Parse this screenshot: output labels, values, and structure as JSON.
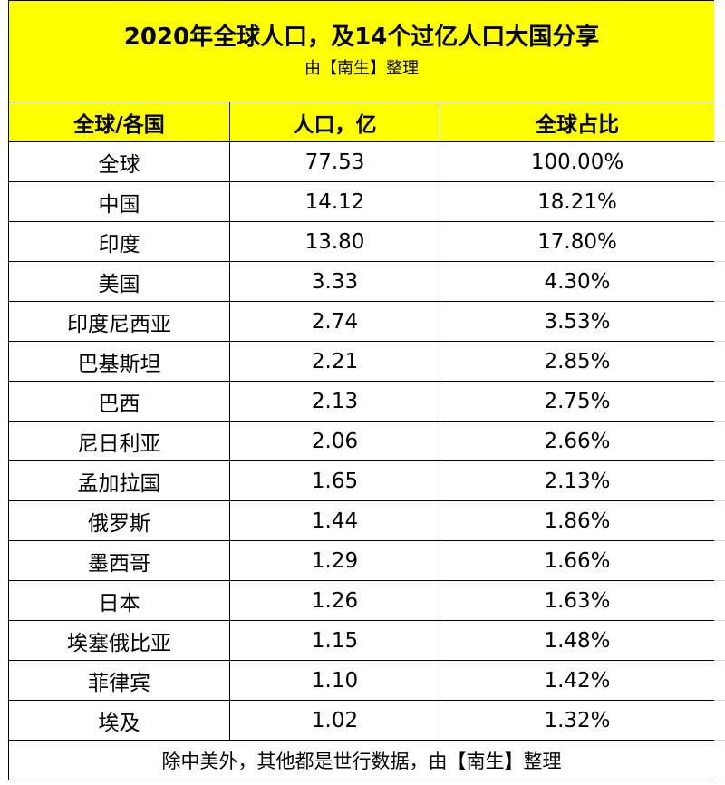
{
  "title": {
    "main": "2020年全球人口，及14个过亿人口大国分享",
    "sub": "由【南生】整理"
  },
  "headers": {
    "col1": "全球/各国",
    "col2": "人口，亿",
    "col3": "全球占比"
  },
  "rows": [
    {
      "name": "全球",
      "population": "77.53",
      "share": "100.00%"
    },
    {
      "name": "中国",
      "population": "14.12",
      "share": "18.21%"
    },
    {
      "name": "印度",
      "population": "13.80",
      "share": "17.80%"
    },
    {
      "name": "美国",
      "population": "3.33",
      "share": "4.30%"
    },
    {
      "name": "印度尼西亚",
      "population": "2.74",
      "share": "3.53%"
    },
    {
      "name": "巴基斯坦",
      "population": "2.21",
      "share": "2.85%"
    },
    {
      "name": "巴西",
      "population": "2.13",
      "share": "2.75%"
    },
    {
      "name": "尼日利亚",
      "population": "2.06",
      "share": "2.66%"
    },
    {
      "name": "孟加拉国",
      "population": "1.65",
      "share": "2.13%"
    },
    {
      "name": "俄罗斯",
      "population": "1.44",
      "share": "1.86%"
    },
    {
      "name": "墨西哥",
      "population": "1.29",
      "share": "1.66%"
    },
    {
      "name": "日本",
      "population": "1.26",
      "share": "1.63%"
    },
    {
      "name": "埃塞俄比亚",
      "population": "1.15",
      "share": "1.48%"
    },
    {
      "name": "菲律宾",
      "population": "1.10",
      "share": "1.42%"
    },
    {
      "name": "埃及",
      "population": "1.02",
      "share": "1.32%"
    }
  ],
  "footer": "除中美外，其他都是世行数据，由【南生】整理",
  "colors": {
    "header_fill": "#ffff00",
    "border": "#000000"
  }
}
